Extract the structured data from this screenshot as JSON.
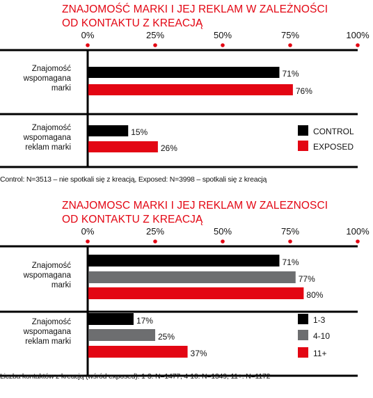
{
  "chart_data": [
    {
      "type": "bar",
      "orientation": "horizontal",
      "title": "ZNAJOMOŚĆ MARKI I JEJ REKLAM W ZALEŻNOŚCI\nOD KONTAKTU Z KREACJĄ",
      "title_lines": [
        "ZNAJOMOŚĆ MARKI I JEJ REKLAM W ZALEŻNOŚCI",
        "OD KONTAKTU Z KREACJĄ"
      ],
      "xlim": [
        0,
        100
      ],
      "xticks": [
        "0%",
        "25%",
        "50%",
        "75%",
        "100%"
      ],
      "grid": false,
      "legend_position": "right",
      "categories": [
        {
          "label": "Znajomość\nwspomagana\nmarki",
          "lines": [
            "Znajomość",
            "wspomagana",
            "marki"
          ]
        },
        {
          "label": "Znajomość\nwspomagana\nreklam marki",
          "lines": [
            "Znajomość",
            "wspomagana",
            "reklam marki"
          ]
        }
      ],
      "series": [
        {
          "name": "CONTROL",
          "color": "#000000",
          "values": [
            71,
            15
          ],
          "labels": [
            "71%",
            "15%"
          ]
        },
        {
          "name": "EXPOSED",
          "color": "#e30613",
          "values": [
            76,
            26
          ],
          "labels": [
            "76%",
            "26%"
          ]
        }
      ],
      "note": "Control: N=3513 – nie spotkali się z kreacją, Exposed: N=3998 – spotkali się z kreacją"
    },
    {
      "type": "bar",
      "orientation": "horizontal",
      "title": "ZNAJOMOSC MARKI I JEJ REKLAM W ZALEZNOSCI\nOD KONTAKTU Z KREACJĄ",
      "title_lines": [
        "ZNAJOMOSC MARKI I JEJ REKLAM W ZALEZNOSCI",
        "OD KONTAKTU Z KREACJĄ"
      ],
      "xlim": [
        0,
        100
      ],
      "xticks": [
        "0%",
        "25%",
        "50%",
        "75%",
        "100%"
      ],
      "grid": false,
      "legend_position": "right",
      "categories": [
        {
          "label": "Znajomość\nwspomagana\nmarki",
          "lines": [
            "Znajomość",
            "wspomagana",
            "marki"
          ]
        },
        {
          "label": "Znajomość\nwspomagana\nreklam marki",
          "lines": [
            "Znajomość",
            "wspomagana",
            "reklam marki"
          ]
        }
      ],
      "series": [
        {
          "name": "1-3",
          "color": "#000000",
          "values": [
            71,
            17
          ],
          "labels": [
            "71%",
            "17%"
          ]
        },
        {
          "name": "4-10",
          "color": "#6d6e70",
          "values": [
            77,
            25
          ],
          "labels": [
            "77%",
            "25%"
          ]
        },
        {
          "name": "11+",
          "color": "#e30613",
          "values": [
            80,
            37
          ],
          "labels": [
            "80%",
            "37%"
          ]
        }
      ],
      "note": "Liczba kontaktów z kreacją (wśród exposed): 1-3: N=1477, 4-10: N=1349, 11+: N=1172"
    }
  ]
}
